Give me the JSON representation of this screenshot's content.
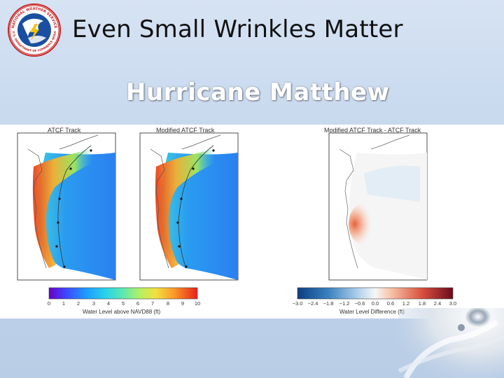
{
  "slide": {
    "title": "Even Small Wrinkles Matter",
    "subtitle": "Hurricane Matthew"
  },
  "logo": {
    "text_top": "NATIONAL WEATHER SERVICE",
    "text_bottom": "U.S. DEPARTMENT OF COMMERCE NOAA"
  },
  "panels": [
    {
      "title": "ATCF Track"
    },
    {
      "title": "Modified ATCF Track"
    },
    {
      "title": "Modified ATCF Track - ATCF Track"
    }
  ],
  "colorbars": [
    {
      "label": "Water Level above NAVD88 (ft)",
      "ticks": [
        "0",
        "1",
        "2",
        "3",
        "4",
        "5",
        "6",
        "7",
        "8",
        "9",
        "10"
      ],
      "colormap": "jet"
    },
    {
      "label": "Water Level Difference (ft)",
      "ticks": [
        "−3.0",
        "−2.4",
        "−1.8",
        "−1.2",
        "−0.6",
        "0.0",
        "0.6",
        "1.2",
        "1.8",
        "2.4",
        "3.0"
      ],
      "colormap": "diverging-blue-red"
    }
  ],
  "colors": {
    "background": "#c3d5ec",
    "subtitle": "#ffffff",
    "title": "#111111"
  }
}
